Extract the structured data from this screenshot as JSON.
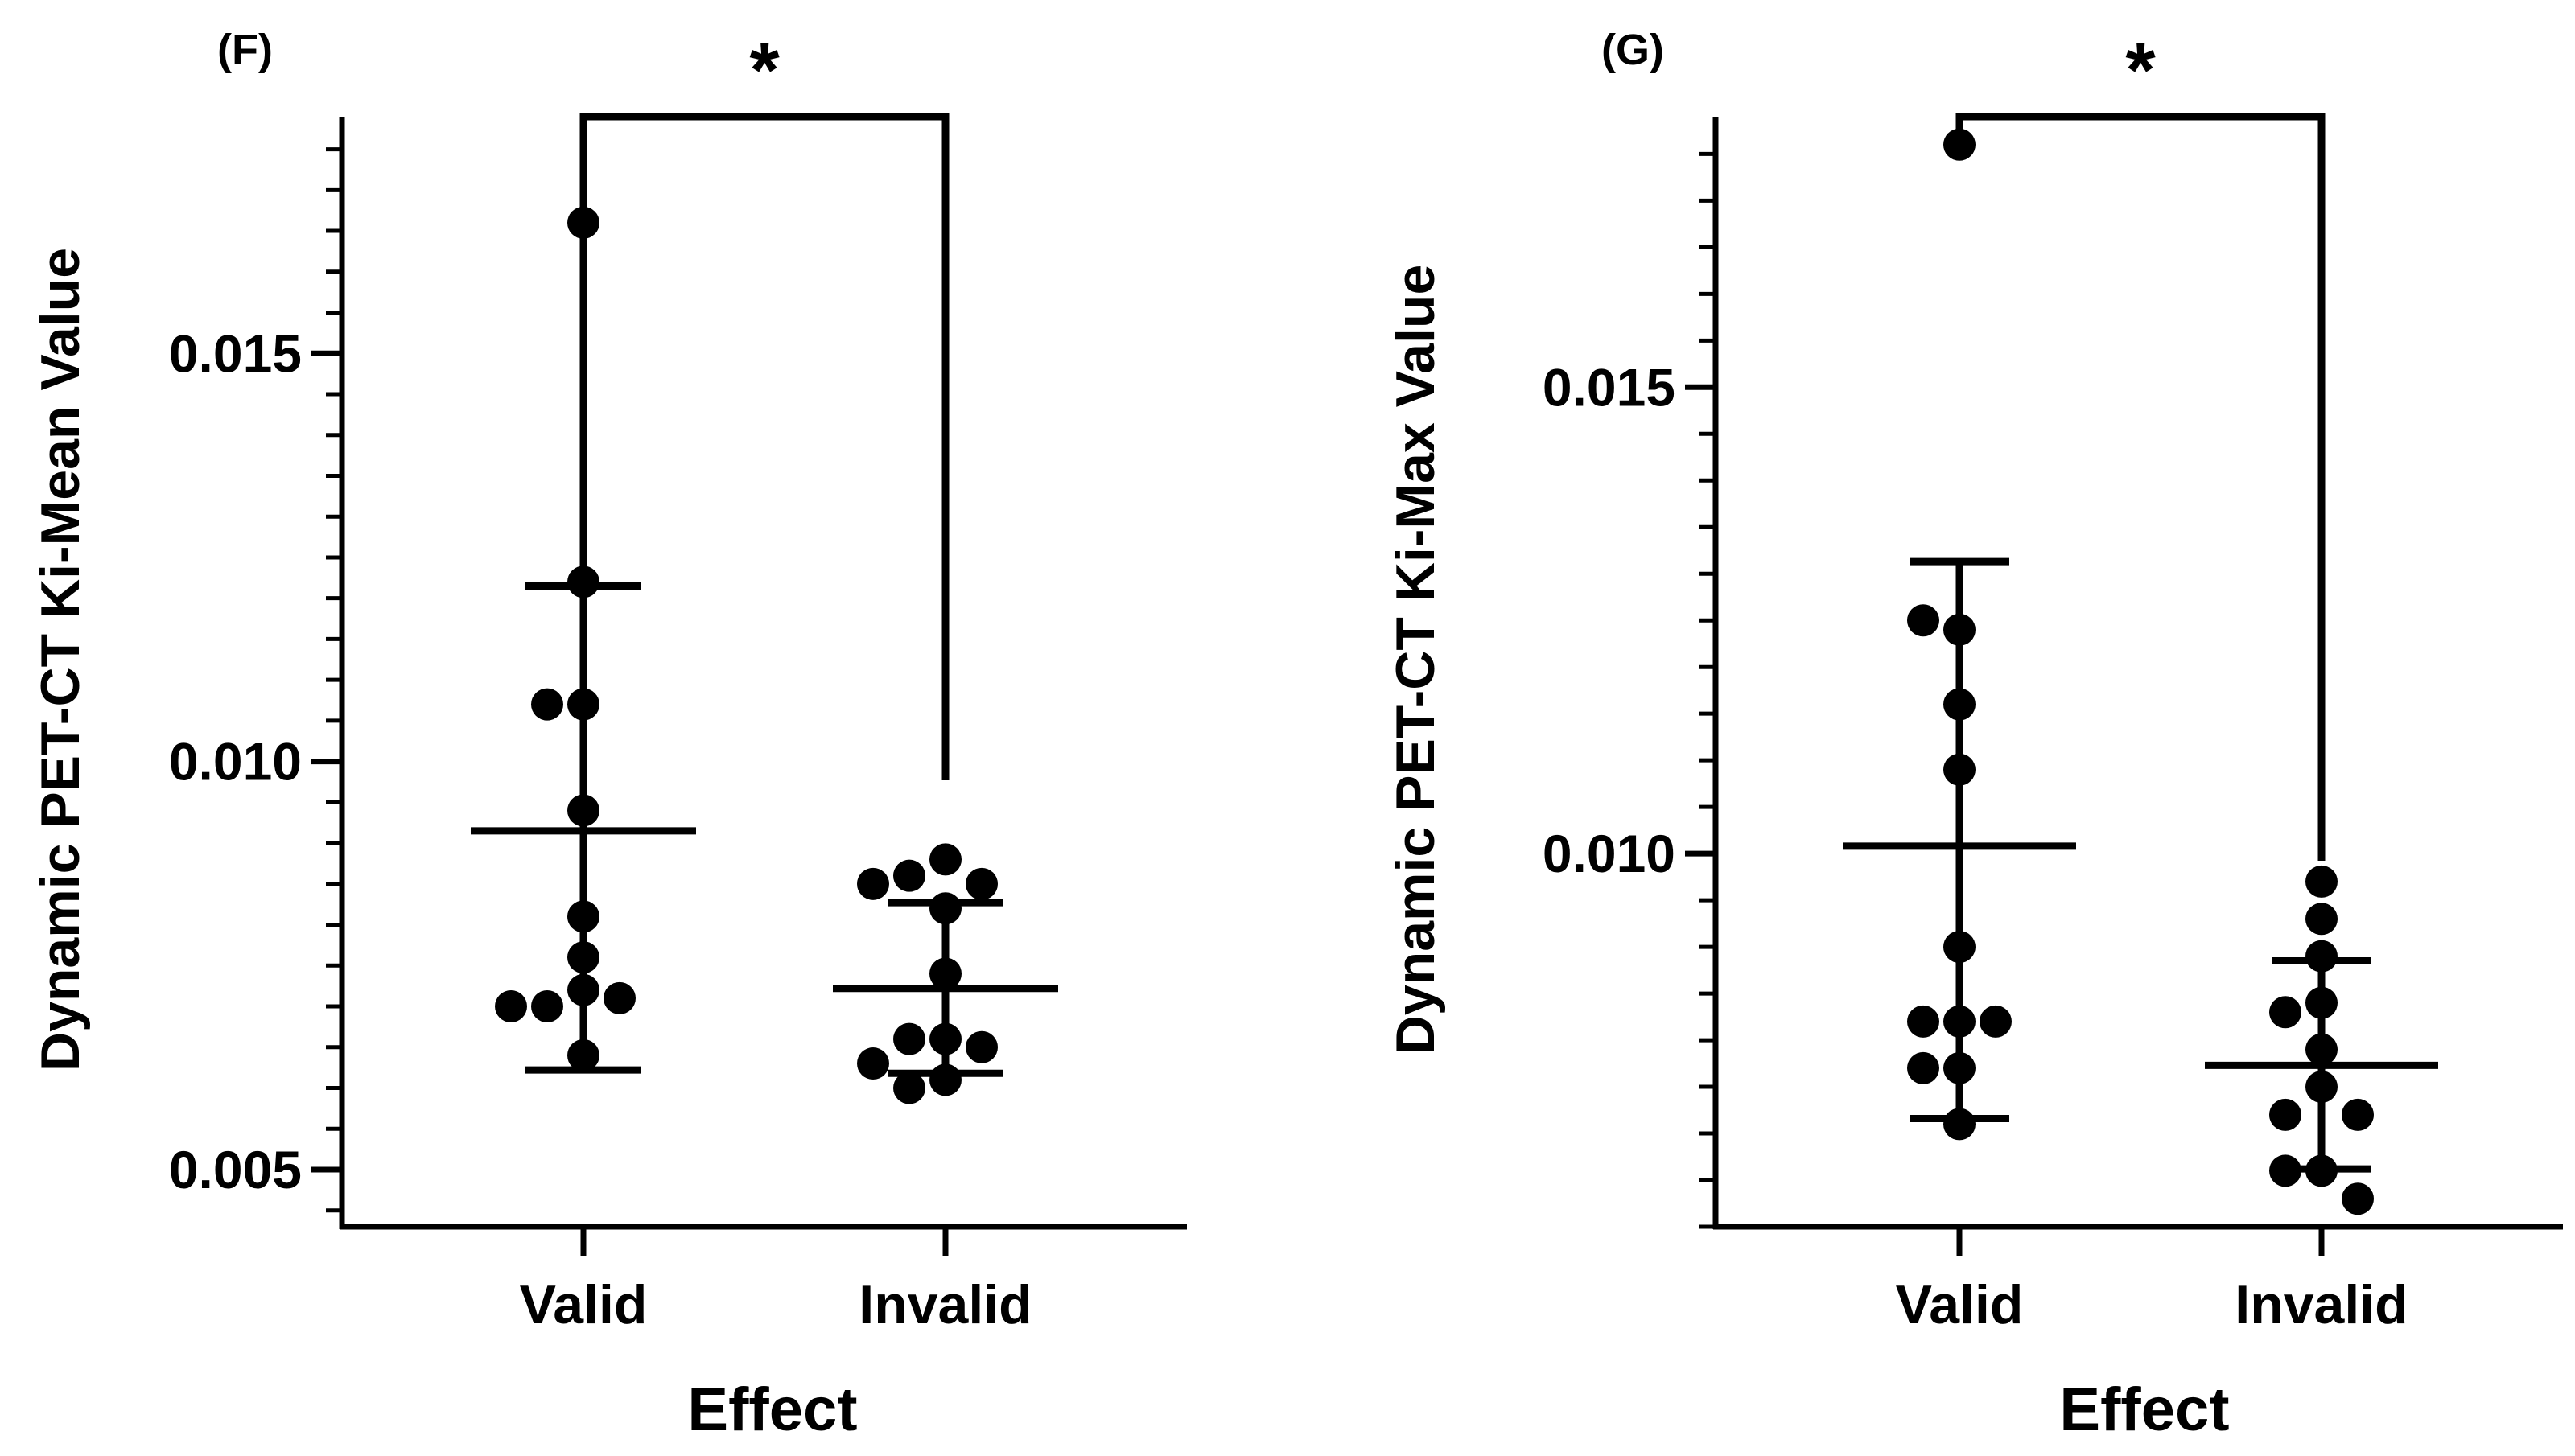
{
  "chart_data": [
    {
      "type": "scatter",
      "panel": "(F)",
      "title": "",
      "xlabel": "Effect",
      "ylabel": "Dynamic PET-CT Ki-Mean Value",
      "categories": [
        "Valid",
        "Invalid"
      ],
      "ylim": [
        0.0043,
        0.0179
      ],
      "yticks": [
        0.005,
        0.01,
        0.015
      ],
      "ytick_labels": [
        "0.005",
        "0.010",
        "0.015"
      ],
      "minor_tick_step": 0.0005,
      "significance": "*",
      "series": [
        {
          "name": "Valid",
          "values": [
            0.0166,
            0.0122,
            0.0107,
            0.0107,
            0.0094,
            0.0081,
            0.0076,
            0.0072,
            0.007,
            0.0071,
            0.007,
            0.0064
          ],
          "mean": 0.00915,
          "sd_low": 0.00622,
          "sd_high": 0.01215
        },
        {
          "name": "Invalid",
          "values": [
            0.0088,
            0.0086,
            0.0085,
            0.0085,
            0.0082,
            0.0074,
            0.0066,
            0.0066,
            0.0065,
            0.0063,
            0.0061,
            0.006
          ],
          "mean": 0.00722,
          "sd_low": 0.00618,
          "sd_high": 0.00827
        }
      ]
    },
    {
      "type": "scatter",
      "panel": "(G)",
      "title": "",
      "xlabel": "Effect",
      "ylabel": "Dynamic PET-CT Ki-Max Value",
      "categories": [
        "Valid",
        "Invalid"
      ],
      "ylim": [
        0.006,
        0.0179
      ],
      "yticks": [
        0.01,
        0.015
      ],
      "ytick_labels": [
        "0.010",
        "0.015"
      ],
      "minor_tick_step": 0.0005,
      "significance": "*",
      "series": [
        {
          "name": "Valid",
          "values": [
            0.0176,
            0.0124,
            0.0125,
            0.0116,
            0.0109,
            0.009,
            0.0082,
            0.0082,
            0.0082,
            0.0077,
            0.0077,
            0.0071
          ],
          "mean": 0.01008,
          "sd_low": 0.00716,
          "sd_high": 0.01313
        },
        {
          "name": "Invalid",
          "values": [
            0.0097,
            0.0093,
            0.0089,
            0.0084,
            0.0083,
            0.0079,
            0.0075,
            0.0072,
            0.0072,
            0.0066,
            0.0066,
            0.0063
          ],
          "mean": 0.00773,
          "sd_low": 0.00662,
          "sd_high": 0.00885
        }
      ]
    }
  ]
}
